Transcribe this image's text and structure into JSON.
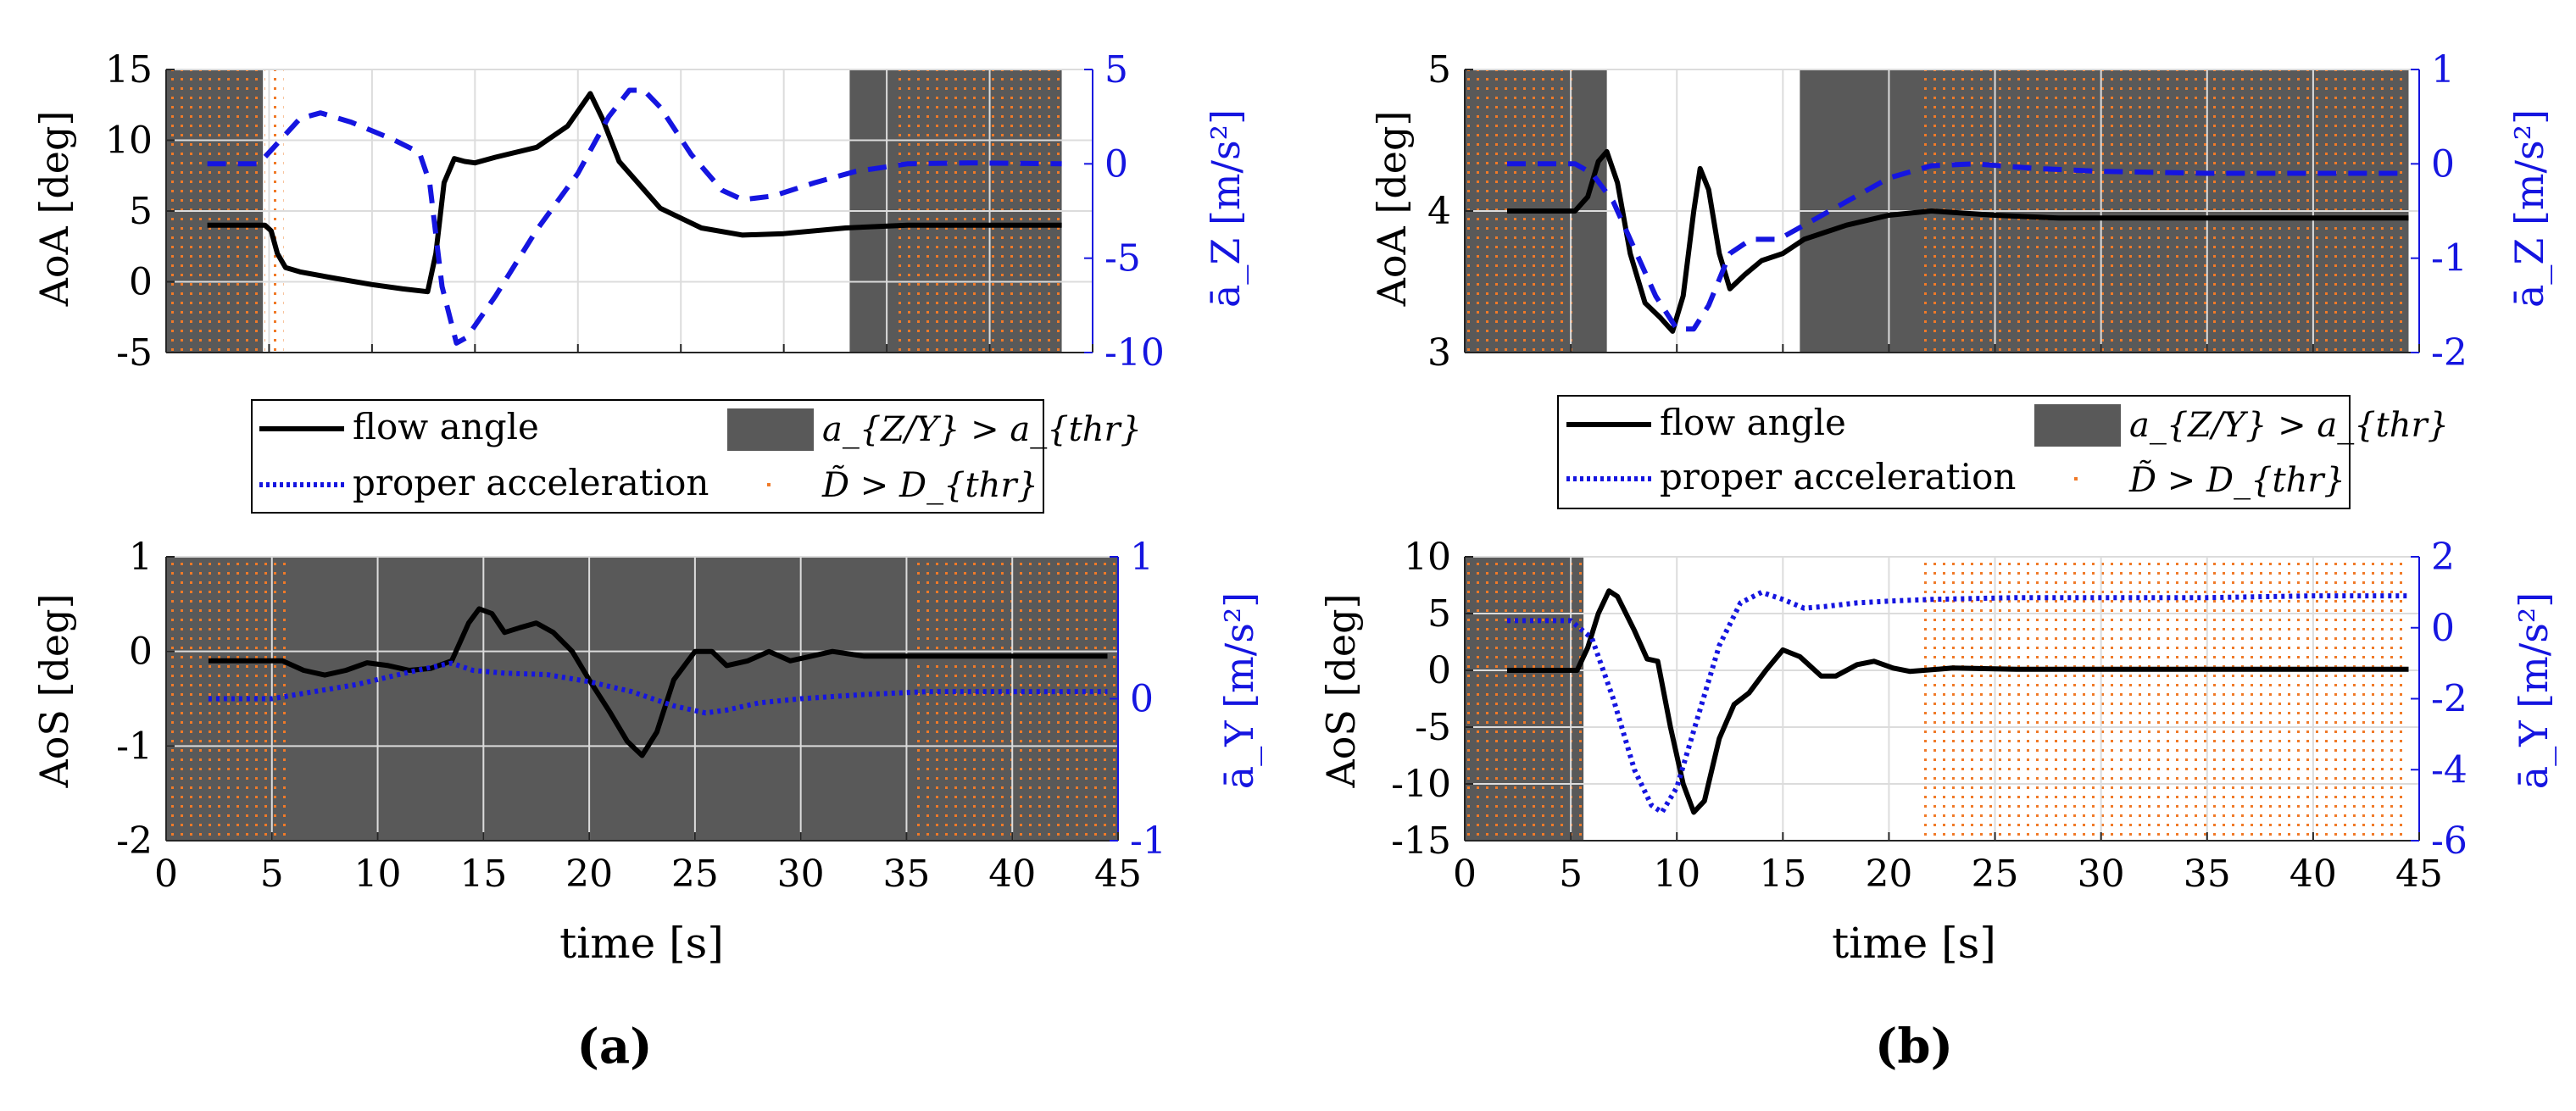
{
  "panel_labels": [
    "(a)",
    "(b)"
  ],
  "legend": {
    "flow_angle": "flow angle",
    "proper_acceleration": "proper acceleration",
    "accel_exceed": "a_{Z/Y} > a_{thr}",
    "dist_exceed": "D̃ > D_{thr}"
  },
  "colors": {
    "flow_angle": "#000000",
    "acceleration": "#1515e0",
    "accel_shade": "#595959",
    "dist_dots": "#f07a28",
    "grid": "#dcdcdc"
  },
  "chart_data": [
    {
      "id": "a-top",
      "type": "line",
      "title": "",
      "xlabel": "",
      "ylabel": "AoA [deg]",
      "y2label": "ā_Z [m/s²]",
      "xlim": [
        0,
        45
      ],
      "ylim": [
        -5,
        15
      ],
      "y2lim": [
        -10,
        5
      ],
      "xticks": [
        0,
        5,
        10,
        15,
        20,
        25,
        30,
        35,
        40,
        45
      ],
      "xtick_labels_shown": false,
      "yticks": [
        -5,
        0,
        5,
        10,
        15
      ],
      "y2ticks": [
        -10,
        -5,
        0,
        5
      ],
      "grid": true,
      "accel_spans": [
        [
          0,
          4.7
        ],
        [
          33.2,
          43.5
        ]
      ],
      "dist_spans": [
        [
          0,
          4.8
        ],
        [
          5.0,
          5.7
        ],
        [
          35.3,
          43.5
        ]
      ],
      "series": [
        {
          "name": "flow angle",
          "axis": "left",
          "style": "solid",
          "points": [
            [
              2,
              4
            ],
            [
              4.8,
              4
            ],
            [
              5.1,
              3.6
            ],
            [
              5.4,
              2.0
            ],
            [
              5.8,
              1.0
            ],
            [
              6.5,
              0.7
            ],
            [
              8,
              0.3
            ],
            [
              10,
              -0.2
            ],
            [
              11.5,
              -0.5
            ],
            [
              12.7,
              -0.7
            ],
            [
              13.1,
              2.0
            ],
            [
              13.5,
              7.0
            ],
            [
              14,
              8.7
            ],
            [
              14.5,
              8.5
            ],
            [
              15,
              8.4
            ],
            [
              16,
              8.8
            ],
            [
              18,
              9.5
            ],
            [
              19.5,
              11.0
            ],
            [
              20.6,
              13.3
            ],
            [
              21.2,
              11.5
            ],
            [
              22,
              8.5
            ],
            [
              24,
              5.2
            ],
            [
              26,
              3.8
            ],
            [
              28,
              3.3
            ],
            [
              30,
              3.4
            ],
            [
              33,
              3.8
            ],
            [
              36,
              4.0
            ],
            [
              40,
              4.0
            ],
            [
              43.5,
              4.0
            ]
          ]
        },
        {
          "name": "proper acceleration",
          "axis": "right",
          "style": "dashed",
          "points": [
            [
              2,
              0
            ],
            [
              4.5,
              0
            ],
            [
              5.5,
              1.2
            ],
            [
              6.5,
              2.4
            ],
            [
              7.5,
              2.7
            ],
            [
              9,
              2.2
            ],
            [
              11,
              1.3
            ],
            [
              12.3,
              0.6
            ],
            [
              12.8,
              -1.0
            ],
            [
              13.4,
              -6.5
            ],
            [
              14.1,
              -9.5
            ],
            [
              14.6,
              -9.2
            ],
            [
              16,
              -7.0
            ],
            [
              18,
              -3.5
            ],
            [
              20,
              -0.5
            ],
            [
              21.5,
              2.5
            ],
            [
              22.5,
              3.9
            ],
            [
              23.2,
              3.9
            ],
            [
              24,
              3.0
            ],
            [
              25.5,
              0.5
            ],
            [
              27,
              -1.4
            ],
            [
              28,
              -1.9
            ],
            [
              29.5,
              -1.7
            ],
            [
              31.5,
              -1.0
            ],
            [
              33.5,
              -0.4
            ],
            [
              36,
              0.0
            ],
            [
              39,
              0.05
            ],
            [
              43.5,
              0.0
            ]
          ]
        }
      ]
    },
    {
      "id": "a-bottom",
      "type": "line",
      "title": "",
      "xlabel": "time [s]",
      "ylabel": "AoS [deg]",
      "y2label": "ā_Y [m/s²]",
      "xlim": [
        0,
        45
      ],
      "ylim": [
        -2,
        1
      ],
      "y2lim": [
        -1,
        1
      ],
      "xticks": [
        0,
        5,
        10,
        15,
        20,
        25,
        30,
        35,
        40,
        45
      ],
      "xtick_labels_shown": true,
      "yticks": [
        -2,
        -1,
        0,
        1
      ],
      "y2ticks": [
        -1,
        0,
        1
      ],
      "grid": true,
      "accel_spans": [
        [
          0,
          45
        ]
      ],
      "dist_spans": [
        [
          0,
          5.7
        ],
        [
          35.4,
          45
        ]
      ],
      "series": [
        {
          "name": "flow angle",
          "axis": "left",
          "style": "solid",
          "points": [
            [
              2,
              -0.1
            ],
            [
              5.5,
              -0.1
            ],
            [
              6.5,
              -0.2
            ],
            [
              7.5,
              -0.25
            ],
            [
              8.5,
              -0.2
            ],
            [
              9.5,
              -0.12
            ],
            [
              10.5,
              -0.15
            ],
            [
              11.5,
              -0.2
            ],
            [
              12.5,
              -0.18
            ],
            [
              13.5,
              -0.1
            ],
            [
              14.3,
              0.3
            ],
            [
              14.8,
              0.45
            ],
            [
              15.4,
              0.4
            ],
            [
              16,
              0.2
            ],
            [
              16.7,
              0.25
            ],
            [
              17.5,
              0.3
            ],
            [
              18.3,
              0.2
            ],
            [
              19.2,
              0.0
            ],
            [
              20,
              -0.3
            ],
            [
              21,
              -0.65
            ],
            [
              21.8,
              -0.95
            ],
            [
              22.5,
              -1.1
            ],
            [
              23.2,
              -0.85
            ],
            [
              24,
              -0.3
            ],
            [
              25,
              0.0
            ],
            [
              25.8,
              0.0
            ],
            [
              26.5,
              -0.15
            ],
            [
              27.5,
              -0.1
            ],
            [
              28.5,
              0.0
            ],
            [
              29.5,
              -0.1
            ],
            [
              30.5,
              -0.05
            ],
            [
              31.5,
              0.0
            ],
            [
              33,
              -0.05
            ],
            [
              35,
              -0.05
            ],
            [
              38,
              -0.05
            ],
            [
              44.5,
              -0.05
            ]
          ]
        },
        {
          "name": "proper acceleration",
          "axis": "right",
          "style": "dotted",
          "points": [
            [
              2,
              0.0
            ],
            [
              5,
              0.0
            ],
            [
              7,
              0.05
            ],
            [
              9,
              0.1
            ],
            [
              11,
              0.17
            ],
            [
              12.5,
              0.22
            ],
            [
              13.5,
              0.25
            ],
            [
              14.5,
              0.2
            ],
            [
              16,
              0.18
            ],
            [
              18,
              0.17
            ],
            [
              20,
              0.12
            ],
            [
              22,
              0.05
            ],
            [
              24,
              -0.05
            ],
            [
              25.5,
              -0.1
            ],
            [
              26.5,
              -0.08
            ],
            [
              28,
              -0.03
            ],
            [
              30,
              0.0
            ],
            [
              33,
              0.03
            ],
            [
              36,
              0.05
            ],
            [
              40,
              0.05
            ],
            [
              44.5,
              0.05
            ]
          ]
        }
      ]
    },
    {
      "id": "b-top",
      "type": "line",
      "title": "",
      "xlabel": "",
      "ylabel": "AoA [deg]",
      "y2label": "ā_Z [m/s²]",
      "xlim": [
        0,
        45
      ],
      "ylim": [
        3,
        5
      ],
      "y2lim": [
        -2,
        1
      ],
      "xticks": [
        0,
        5,
        10,
        15,
        20,
        25,
        30,
        35,
        40,
        45
      ],
      "xtick_labels_shown": false,
      "yticks": [
        3,
        4,
        5
      ],
      "y2ticks": [
        -2,
        -1,
        0,
        1
      ],
      "grid": true,
      "accel_spans": [
        [
          0,
          6.7
        ],
        [
          15.8,
          44.5
        ]
      ],
      "dist_spans": [
        [
          0,
          5.3
        ],
        [
          21.4,
          44.5
        ]
      ],
      "series": [
        {
          "name": "flow angle",
          "axis": "left",
          "style": "solid",
          "points": [
            [
              2,
              4.0
            ],
            [
              5.2,
              4.0
            ],
            [
              5.8,
              4.1
            ],
            [
              6.3,
              4.35
            ],
            [
              6.7,
              4.42
            ],
            [
              7.2,
              4.2
            ],
            [
              7.8,
              3.7
            ],
            [
              8.5,
              3.35
            ],
            [
              9.2,
              3.25
            ],
            [
              9.8,
              3.15
            ],
            [
              10.3,
              3.4
            ],
            [
              10.8,
              4.0
            ],
            [
              11.1,
              4.3
            ],
            [
              11.5,
              4.15
            ],
            [
              12,
              3.7
            ],
            [
              12.5,
              3.45
            ],
            [
              13.2,
              3.55
            ],
            [
              14,
              3.65
            ],
            [
              15,
              3.7
            ],
            [
              16,
              3.8
            ],
            [
              18,
              3.9
            ],
            [
              20,
              3.97
            ],
            [
              22,
              4.0
            ],
            [
              25,
              3.97
            ],
            [
              28,
              3.95
            ],
            [
              33,
              3.95
            ],
            [
              40,
              3.95
            ],
            [
              44.5,
              3.95
            ]
          ]
        },
        {
          "name": "proper acceleration",
          "axis": "right",
          "style": "dashed",
          "points": [
            [
              2,
              0.0
            ],
            [
              5.2,
              0.0
            ],
            [
              6,
              -0.1
            ],
            [
              7,
              -0.4
            ],
            [
              8,
              -0.9
            ],
            [
              9,
              -1.4
            ],
            [
              10,
              -1.75
            ],
            [
              10.8,
              -1.75
            ],
            [
              11.5,
              -1.5
            ],
            [
              12.5,
              -0.95
            ],
            [
              13.5,
              -0.8
            ],
            [
              14.8,
              -0.8
            ],
            [
              16,
              -0.65
            ],
            [
              18,
              -0.4
            ],
            [
              20,
              -0.15
            ],
            [
              22,
              -0.02
            ],
            [
              24,
              0.0
            ],
            [
              27,
              -0.05
            ],
            [
              30,
              -0.08
            ],
            [
              35,
              -0.1
            ],
            [
              40,
              -0.1
            ],
            [
              44.5,
              -0.1
            ]
          ]
        }
      ]
    },
    {
      "id": "b-bottom",
      "type": "line",
      "title": "",
      "xlabel": "time [s]",
      "ylabel": "AoS [deg]",
      "y2label": "ā_Y [m/s²]",
      "xlim": [
        0,
        45
      ],
      "ylim": [
        -15,
        10
      ],
      "y2lim": [
        -6,
        2
      ],
      "xticks": [
        0,
        5,
        10,
        15,
        20,
        25,
        30,
        35,
        40,
        45
      ],
      "xtick_labels_shown": true,
      "yticks": [
        -15,
        -10,
        -5,
        0,
        5,
        10
      ],
      "y2ticks": [
        -6,
        -4,
        -2,
        0,
        2
      ],
      "grid": true,
      "accel_spans": [
        [
          0,
          5.6
        ]
      ],
      "dist_spans": [
        [
          0,
          5.6
        ],
        [
          21.4,
          44.5
        ]
      ],
      "series": [
        {
          "name": "flow angle",
          "axis": "left",
          "style": "solid",
          "points": [
            [
              2,
              0.0
            ],
            [
              5.3,
              0.0
            ],
            [
              5.8,
              2.0
            ],
            [
              6.3,
              5.0
            ],
            [
              6.8,
              7.0
            ],
            [
              7.2,
              6.5
            ],
            [
              8,
              3.5
            ],
            [
              8.6,
              1.0
            ],
            [
              9.1,
              0.8
            ],
            [
              9.7,
              -5.0
            ],
            [
              10.3,
              -10.0
            ],
            [
              10.8,
              -12.5
            ],
            [
              11.3,
              -11.5
            ],
            [
              12,
              -6.0
            ],
            [
              12.7,
              -3.0
            ],
            [
              13.4,
              -2.0
            ],
            [
              14.2,
              0.0
            ],
            [
              15,
              1.8
            ],
            [
              15.8,
              1.2
            ],
            [
              16.8,
              -0.5
            ],
            [
              17.5,
              -0.5
            ],
            [
              18.5,
              0.5
            ],
            [
              19.3,
              0.8
            ],
            [
              20.2,
              0.2
            ],
            [
              21,
              -0.1
            ],
            [
              23,
              0.2
            ],
            [
              26,
              0.1
            ],
            [
              30,
              0.1
            ],
            [
              35,
              0.1
            ],
            [
              40,
              0.1
            ],
            [
              44.5,
              0.1
            ]
          ]
        },
        {
          "name": "proper acceleration",
          "axis": "right",
          "style": "dotted",
          "points": [
            [
              2,
              0.2
            ],
            [
              5,
              0.2
            ],
            [
              6,
              -0.3
            ],
            [
              7,
              -2.0
            ],
            [
              8,
              -4.0
            ],
            [
              8.8,
              -5.0
            ],
            [
              9.3,
              -5.2
            ],
            [
              10,
              -4.5
            ],
            [
              11,
              -2.5
            ],
            [
              12,
              -0.5
            ],
            [
              13,
              0.7
            ],
            [
              14,
              1.0
            ],
            [
              15,
              0.8
            ],
            [
              16,
              0.55
            ],
            [
              17,
              0.6
            ],
            [
              18.5,
              0.7
            ],
            [
              20,
              0.75
            ],
            [
              22,
              0.8
            ],
            [
              26,
              0.85
            ],
            [
              30,
              0.85
            ],
            [
              35,
              0.85
            ],
            [
              40,
              0.9
            ],
            [
              44.5,
              0.9
            ]
          ]
        }
      ]
    }
  ]
}
